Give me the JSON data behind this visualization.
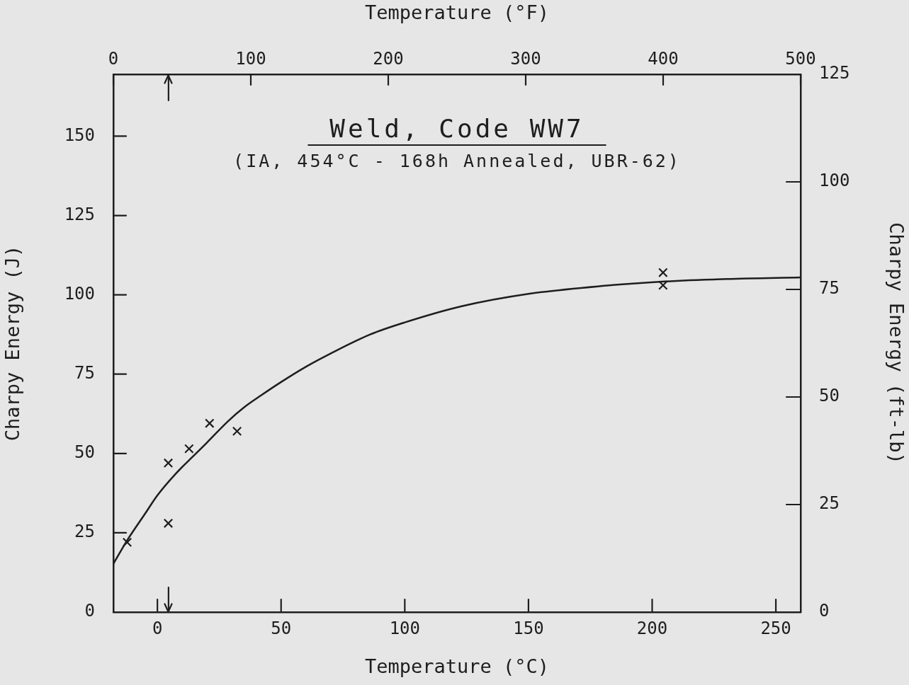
{
  "chart_data": {
    "type": "scatter",
    "title": "Weld, Code WW7",
    "subtitle": "(IA, 454°C - 168h Annealed, UBR-62)",
    "xlabel": "Temperature (°C)",
    "ylabel": "Charpy Energy (J)",
    "x2label": "Temperature (°F)",
    "y2label": "Charpy Energy (ft-lb)",
    "xlim": [
      -17.8,
      260
    ],
    "xticks": [
      0,
      50,
      100,
      150,
      200,
      250
    ],
    "x2lim": [
      0,
      500
    ],
    "x2ticks": [
      0,
      100,
      200,
      300,
      400,
      500
    ],
    "ylim": [
      0,
      169.5
    ],
    "yticks": [
      0,
      25,
      50,
      75,
      100,
      125,
      150
    ],
    "y2lim": [
      0,
      125
    ],
    "y2ticks": [
      0,
      25,
      50,
      75,
      100,
      125
    ],
    "series": [
      {
        "marker": "cross",
        "color": "#1e1e1e",
        "x": [
          -12.2,
          4.4,
          4.4,
          12.8,
          21.1,
          32.2,
          204.4,
          204.4
        ],
        "values": [
          22,
          47,
          28,
          51.5,
          59.5,
          57,
          107,
          103
        ]
      },
      {
        "type": "line",
        "marker": "none",
        "color": "#1e1e1e",
        "x": [
          -17.8,
          -12.4,
          -5,
          0,
          7.5,
          14.7,
          20,
          28.6,
          35,
          42.1,
          50,
          60,
          70,
          86,
          100,
          123,
          150,
          180,
          205,
          230,
          260
        ],
        "values": [
          15.2,
          22.4,
          31,
          36.8,
          43.7,
          49.3,
          53.4,
          60.2,
          64.5,
          68.4,
          72.5,
          77.3,
          81.5,
          87.5,
          91.3,
          96.4,
          100.3,
          102.8,
          104.2,
          105,
          105.5
        ]
      }
    ],
    "ref_lines": [
      {
        "axis": "x",
        "value": 4.5,
        "label": null
      }
    ]
  }
}
